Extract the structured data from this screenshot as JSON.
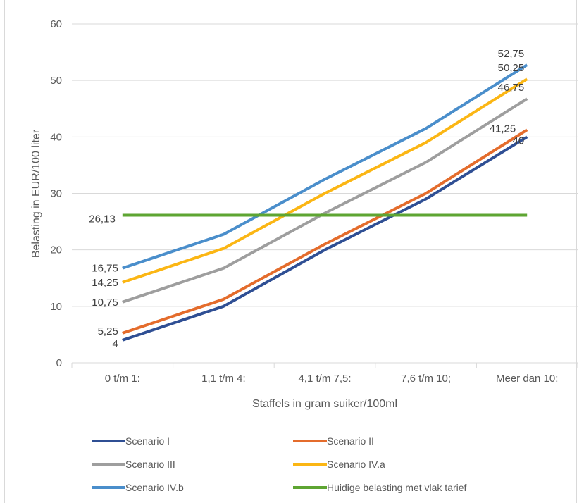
{
  "chart_data": {
    "type": "line",
    "title": "",
    "xlabel": "Staffels in gram suiker/100ml",
    "ylabel": "Belasting in EUR/100 liter",
    "categories": [
      "0 t/m 1:",
      "1,1 t/m 4:",
      "4,1 t/m 7,5:",
      "7,6 t/m 10;",
      "Meer dan 10:"
    ],
    "ylim": [
      0,
      60
    ],
    "yticks": [
      0,
      10,
      20,
      30,
      40,
      50,
      60
    ],
    "grid": true,
    "legend_position": "bottom",
    "series": [
      {
        "name": "Scenario I",
        "color": "#2f4f94",
        "values": [
          4,
          10,
          20,
          29,
          40
        ],
        "labels": {
          "0": "4",
          "4": "40"
        }
      },
      {
        "name": "Scenario II",
        "color": "#e46c2c",
        "values": [
          5.25,
          11.25,
          21,
          30,
          41.25
        ],
        "labels": {
          "0": "5,25",
          "4": "41,25"
        }
      },
      {
        "name": "Scenario III",
        "color": "#9e9e9e",
        "values": [
          10.75,
          16.75,
          26.5,
          35.5,
          46.75
        ],
        "labels": {
          "0": "10,75",
          "4": "46,75"
        }
      },
      {
        "name": "Scenario IV.a",
        "color": "#fbb614",
        "values": [
          14.25,
          20.25,
          30,
          39,
          50.25
        ],
        "labels": {
          "0": "14,25",
          "4": "50,25"
        }
      },
      {
        "name": "Scenario IV.b",
        "color": "#4a8ecb",
        "values": [
          16.75,
          22.75,
          32.5,
          41.5,
          52.75
        ],
        "labels": {
          "0": "16,75",
          "4": "52,75"
        }
      },
      {
        "name": "Huidige belasting met vlak tarief",
        "color": "#5ea532",
        "values": [
          26.13,
          26.13,
          26.13,
          26.13,
          26.13
        ],
        "labels": {
          "0": "26,13"
        }
      }
    ]
  }
}
